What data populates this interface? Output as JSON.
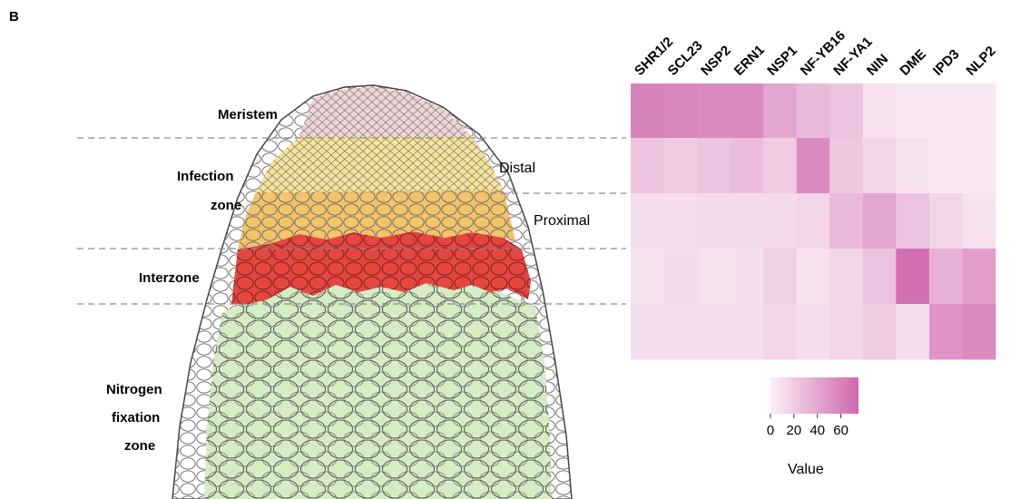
{
  "panel_label": "B",
  "zones": {
    "meristem": "Meristem",
    "infection_line1": "Infection",
    "infection_line2": "zone",
    "distal": "Distal",
    "proximal": "Proximal",
    "interzone": "Interzone",
    "nitrogen_line1": "Nitrogen",
    "nitrogen_line2": "fixation",
    "nitrogen_line3": "zone"
  },
  "zone_colors": {
    "meristem": "#efd3d6",
    "distal": "#f6e39a",
    "proximal": "#f3c46a",
    "interzone": "#e5463f",
    "nitrogen": "#d6ecc4",
    "outer_cells": "#ffffff",
    "dashed_line": "#8a8a9a"
  },
  "chart_data": {
    "type": "heatmap",
    "columns": [
      "SHR1/2",
      "SCL23",
      "NSP2",
      "ERN1",
      "NSP1",
      "NF-YB16",
      "NF-YA1",
      "NIN",
      "DME",
      "IPD3",
      "NLP2"
    ],
    "rows": [
      "Meristem",
      "Distal",
      "Proximal",
      "Interzone",
      "Nitrogen fixation zone"
    ],
    "values": [
      [
        60,
        58,
        55,
        55,
        40,
        30,
        25,
        8,
        5,
        5,
        5
      ],
      [
        25,
        20,
        25,
        28,
        20,
        55,
        22,
        15,
        8,
        5,
        5
      ],
      [
        10,
        10,
        12,
        12,
        12,
        15,
        30,
        40,
        25,
        15,
        8
      ],
      [
        8,
        12,
        8,
        10,
        18,
        8,
        15,
        25,
        70,
        35,
        45
      ],
      [
        10,
        10,
        10,
        10,
        15,
        10,
        15,
        20,
        10,
        50,
        55
      ]
    ],
    "colorbar": {
      "title": "Value",
      "ticks": [
        "0",
        "20",
        "40",
        "60"
      ],
      "range": [
        0,
        75
      ],
      "min_color": "#fbf1f7",
      "max_color": "#cf66ad"
    }
  }
}
